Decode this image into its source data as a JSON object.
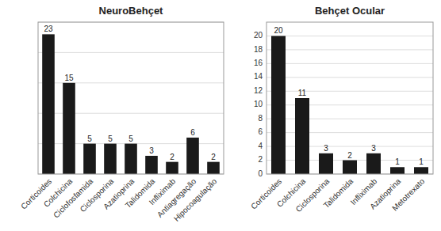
{
  "chart_data": [
    {
      "type": "bar",
      "title": "NeuroBehçet",
      "categories": [
        "Corticoides",
        "Colchicina",
        "Ciclofosfamida",
        "Ciclosporina",
        "Azatioprina",
        "Talidomida",
        "Infliximab",
        "Antiagregação",
        "Hipocoagulação"
      ],
      "values": [
        23,
        15,
        5,
        5,
        5,
        3,
        2,
        6,
        2
      ],
      "color": "#1a1a1a",
      "ylim": [
        0,
        25
      ],
      "yticks": [
        0,
        5,
        10,
        15,
        20,
        25
      ],
      "grid": true,
      "data_labels": true,
      "tick_labels": "x"
    },
    {
      "type": "bar",
      "title": "Behçet Ocular",
      "categories": [
        "Corticoides",
        "Colchicina",
        "Ciclosporina",
        "Talidomida",
        "Infliximab",
        "Azatioprina",
        "Metotrexato"
      ],
      "values": [
        20,
        11,
        3,
        2,
        3,
        1,
        1
      ],
      "color": "#1a1a1a",
      "ylim": [
        0,
        22
      ],
      "yticks": [
        0,
        2,
        4,
        6,
        8,
        10,
        12,
        14,
        16,
        18,
        20
      ],
      "grid": true,
      "data_labels": true
    }
  ]
}
